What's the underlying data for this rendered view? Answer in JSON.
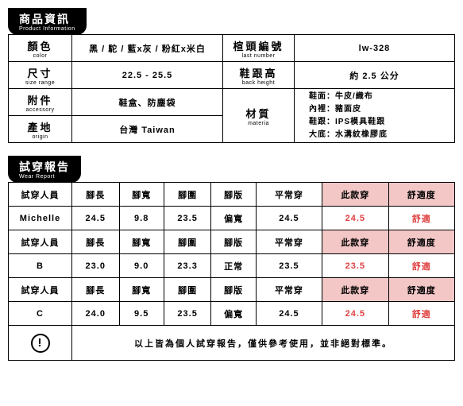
{
  "section1": {
    "title_zh": "商品資訊",
    "title_en": "Product Information",
    "rows": {
      "color": {
        "label_zh": "顏色",
        "label_en": "color",
        "value": "黑 / 駝 / 藍x灰 / 粉紅x米白"
      },
      "size": {
        "label_zh": "尺寸",
        "label_en": "size range",
        "value": "22.5 - 25.5"
      },
      "accessory": {
        "label_zh": "附件",
        "label_en": "accessory",
        "value": "鞋盒、防塵袋"
      },
      "origin": {
        "label_zh": "產地",
        "label_en": "origin",
        "value": "台灣 Taiwan"
      },
      "last": {
        "label_zh": "楦頭編號",
        "label_en": "last number",
        "value": "lw-328"
      },
      "heel": {
        "label_zh": "鞋跟高",
        "label_en": "back height",
        "value": "約 2.5 公分"
      },
      "material": {
        "label_zh": "材質",
        "label_en": "materia",
        "line1": "鞋面：牛皮/織布",
        "line2": "內裡：豬面皮",
        "line3": "鞋跟：IPS模具鞋跟",
        "line4": "大底：水溝紋橡膠底"
      }
    }
  },
  "section2": {
    "title_zh": "試穿報告",
    "title_en": "Wear Report",
    "headers": {
      "person": "試穿人員",
      "len": "腳長",
      "width": "腳寬",
      "circ": "腳圍",
      "shape": "腳版",
      "usual": "平常穿",
      "this": "此款穿",
      "comfort": "舒適度"
    },
    "rows": [
      {
        "name": "Michelle",
        "len": "24.5",
        "width": "9.8",
        "circ": "23.5",
        "shape": "偏寬",
        "usual": "24.5",
        "this": "24.5",
        "comfort": "舒適"
      },
      {
        "name": "B",
        "len": "23.0",
        "width": "9.0",
        "circ": "23.3",
        "shape": "正常",
        "usual": "23.5",
        "this": "23.5",
        "comfort": "舒適"
      },
      {
        "name": "C",
        "len": "24.0",
        "width": "9.5",
        "circ": "23.5",
        "shape": "偏寬",
        "usual": "24.5",
        "this": "24.5",
        "comfort": "舒適"
      }
    ],
    "notice_icon": "!",
    "notice_text": "以上皆為個人試穿報告，僅供參考使用，並非絕對標準。"
  },
  "colors": {
    "pink": "#f4c7c7",
    "red": "#e04040",
    "black": "#000000"
  }
}
